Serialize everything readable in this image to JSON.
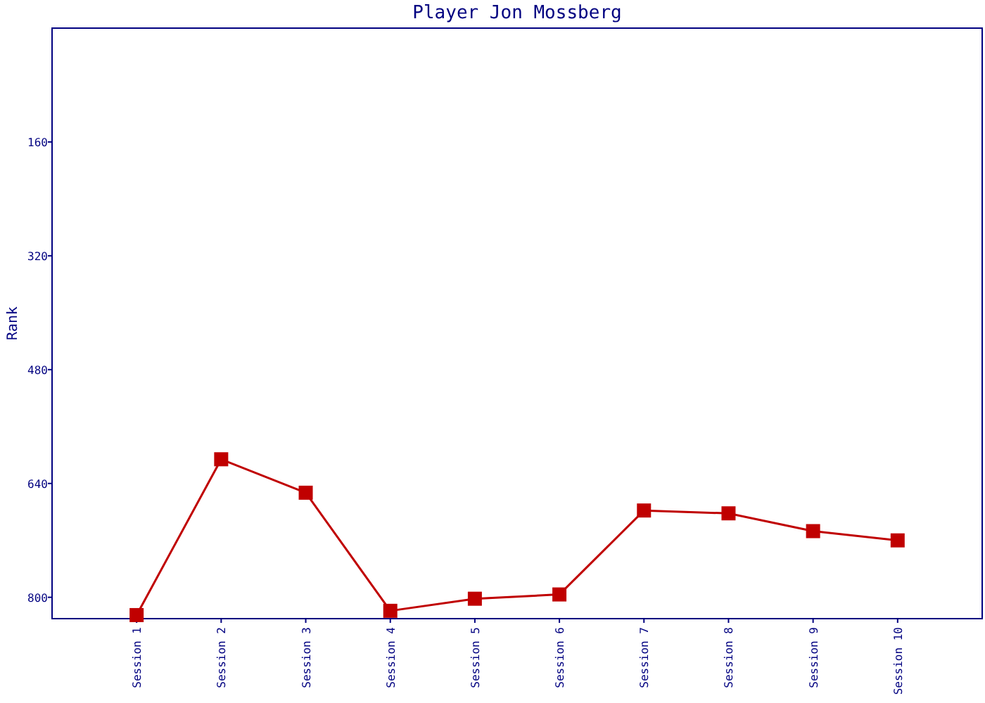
{
  "chart_data": {
    "type": "line",
    "title": "Player Jon Mossberg",
    "ylabel": "Rank",
    "categories": [
      "Session 1",
      "Session 2",
      "Session 3",
      "Session 4",
      "Session 5",
      "Session 6",
      "Session 7",
      "Session 8",
      "Session 9",
      "Session 10"
    ],
    "series": [
      {
        "color": "#c00000",
        "values": [
          825,
          606,
          653,
          819,
          802,
          796,
          678,
          682,
          707,
          720
        ]
      }
    ],
    "ylim": [
      830,
      0
    ],
    "yticks": [
      160,
      320,
      480,
      640,
      800
    ],
    "marker": "square",
    "grid": false
  }
}
